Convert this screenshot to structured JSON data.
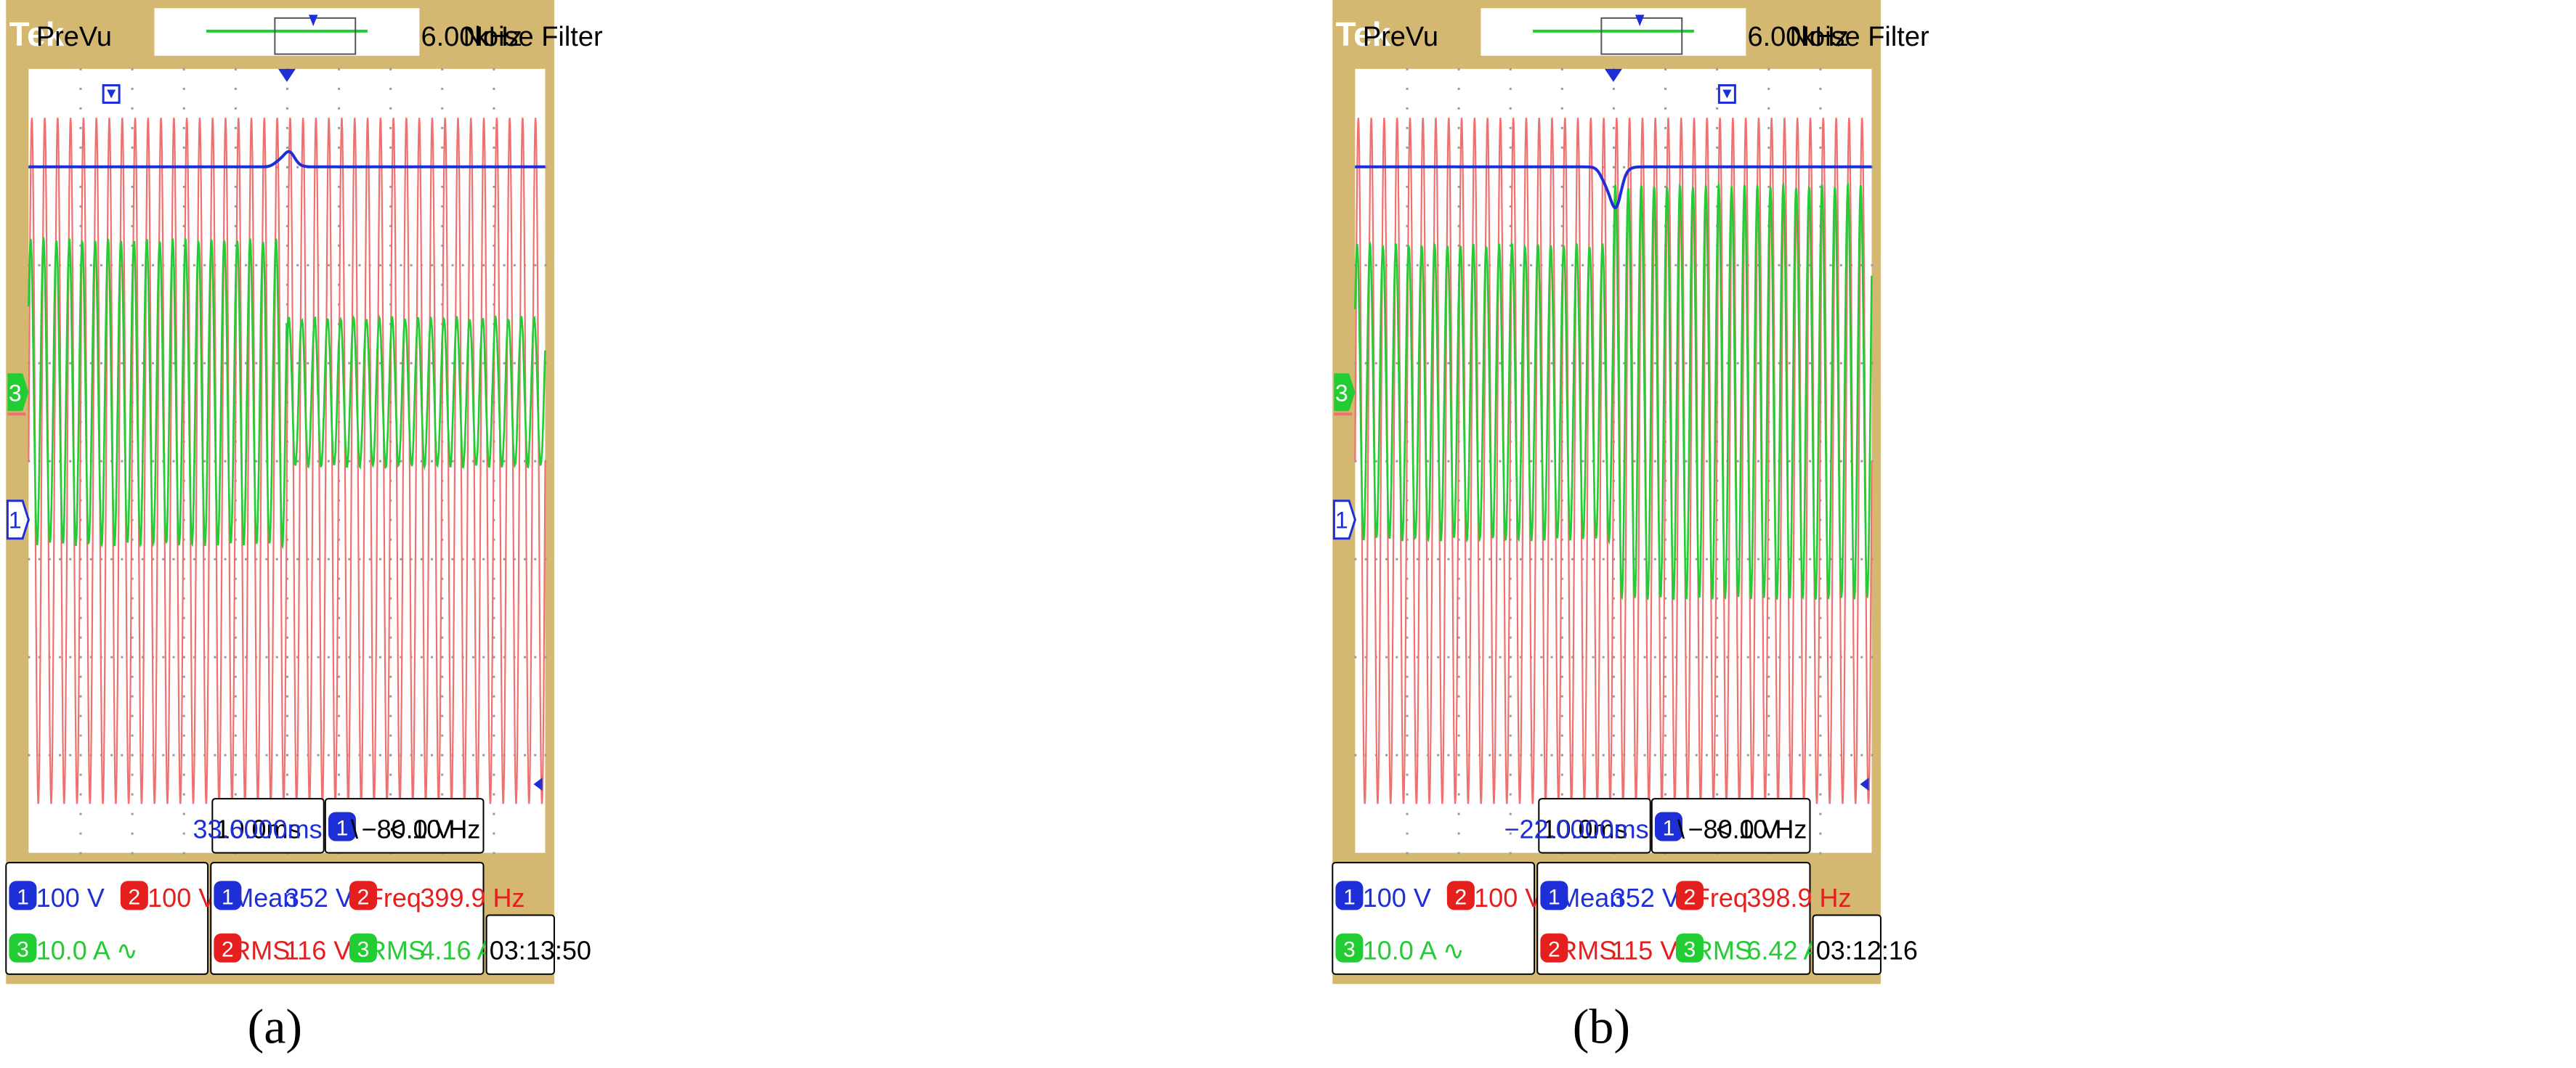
{
  "colors": {
    "frame": "#D4B872",
    "ch1": "#1F2FD8",
    "ch2": "#F07070",
    "ch3": "#22CC33",
    "grid": "#9a9a9a",
    "info_blue": "#1F2FD8",
    "info_red": "#E51E1E",
    "info_green": "#22CC33"
  },
  "chart_data": [
    {
      "type": "line",
      "panel_label": "(a)",
      "header": {
        "brand": "Tek",
        "mode": "PreVu",
        "filter_freq": "6.00kHz",
        "filter_label": "Noise Filter"
      },
      "channel_markers": [
        "3",
        "1"
      ],
      "series": [
        {
          "channel": "1",
          "baseline_div": 3.0,
          "event": "bump",
          "event_amp_div": -0.15
        },
        {
          "channel": "2",
          "amp_div": 3.5,
          "center_div": 0.0,
          "cycles": 40
        },
        {
          "channel": "3",
          "center_div": 0.7,
          "amp_before_div": 1.55,
          "amp_after_div": 0.75,
          "cycles": 40
        }
      ],
      "event_position": 0.5,
      "top_marker_position": 0.16,
      "timebase": {
        "scale": "10.0ms",
        "delay": "33.6000ms"
      },
      "trigger": {
        "channel": "1",
        "slope": "\\",
        "level": "−80.0 V",
        "freq": "< 10 Hz"
      },
      "scales": {
        "ch1": {
          "num": "1",
          "text": "100 V"
        },
        "ch2": {
          "num": "2",
          "text": "100 V"
        },
        "ch3": {
          "num": "3",
          "text": "10.0 A ∿"
        }
      },
      "measurements": [
        {
          "num": "1",
          "label": "Mean",
          "value": "352 V"
        },
        {
          "num": "2",
          "label": "Freq",
          "value": "399.9 Hz"
        },
        {
          "num": "2",
          "label": "RMS",
          "value": "116 V"
        },
        {
          "num": "3",
          "label": "RMS",
          "value": "4.16 A"
        }
      ],
      "time": "03:13:50"
    },
    {
      "type": "line",
      "panel_label": "(b)",
      "header": {
        "brand": "Tek",
        "mode": "PreVu",
        "filter_freq": "6.00kHz",
        "filter_label": "Noise Filter"
      },
      "channel_markers": [
        "3",
        "1"
      ],
      "series": [
        {
          "channel": "1",
          "baseline_div": 3.0,
          "event": "dip",
          "event_amp_div": 0.4
        },
        {
          "channel": "2",
          "amp_div": 3.5,
          "center_div": 0.0,
          "cycles": 40
        },
        {
          "channel": "3",
          "center_div": 0.7,
          "amp_before_div": 1.5,
          "amp_after_div": 2.1,
          "cycles": 40
        }
      ],
      "event_position": 0.5,
      "top_marker_position": 0.72,
      "timebase": {
        "scale": "10.0ms",
        "delay": "−22.0000ms"
      },
      "trigger": {
        "channel": "1",
        "slope": "\\",
        "level": "−80.0 V",
        "freq": "< 10 Hz"
      },
      "scales": {
        "ch1": {
          "num": "1",
          "text": "100 V"
        },
        "ch2": {
          "num": "2",
          "text": "100 V"
        },
        "ch3": {
          "num": "3",
          "text": "10.0 A ∿"
        }
      },
      "measurements": [
        {
          "num": "1",
          "label": "Mean",
          "value": "352 V"
        },
        {
          "num": "2",
          "label": "Freq",
          "value": "398.9 Hz"
        },
        {
          "num": "2",
          "label": "RMS",
          "value": "115 V"
        },
        {
          "num": "3",
          "label": "RMS",
          "value": "6.42 A"
        }
      ],
      "time": "03:12:16"
    }
  ]
}
